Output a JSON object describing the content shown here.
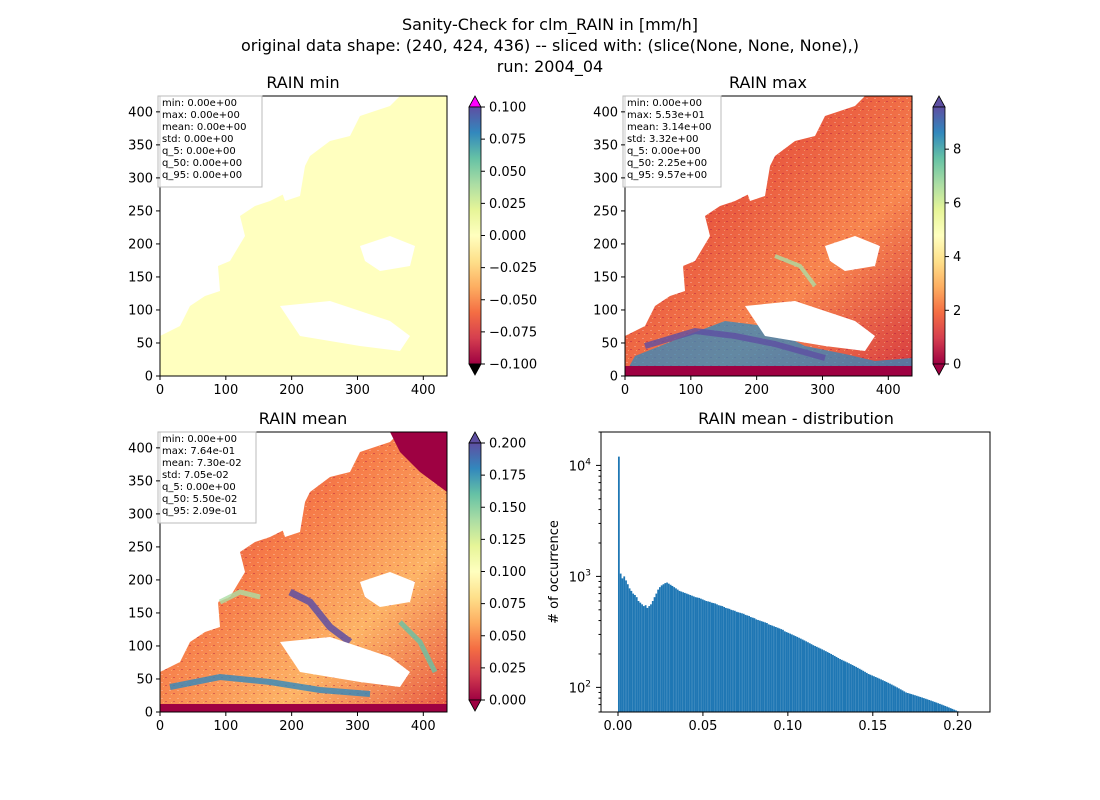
{
  "figure": {
    "title_lines": [
      "Sanity-Check for clm_RAIN in [mm/h]",
      "original data shape: (240, 424, 436) -- sliced with: (slice(None, None, None),)",
      "run: 2004_04"
    ]
  },
  "chart_data": [
    {
      "type": "heatmap",
      "title": "RAIN min",
      "x_ticks": [
        "0",
        "100",
        "200",
        "300",
        "400"
      ],
      "y_ticks": [
        "0",
        "50",
        "100",
        "150",
        "200",
        "250",
        "300",
        "350",
        "400"
      ],
      "xlim": [
        0,
        436
      ],
      "ylim": [
        0,
        424
      ],
      "colorbar": {
        "ticks": [
          "0.100",
          "0.075",
          "0.050",
          "0.025",
          "0.000",
          "−0.025",
          "−0.050",
          "−0.075",
          "−0.100"
        ],
        "vmin": -0.1,
        "vmax": 0.1,
        "extend": "both",
        "over_color": "#ff00ff",
        "under_color": "#000000"
      },
      "stats": [
        "min: 0.00e+00",
        "max: 0.00e+00",
        "mean: 0.00e+00",
        "std: 0.00e+00",
        "q_5: 0.00e+00",
        "q_50: 0.00e+00",
        "q_95: 0.00e+00"
      ]
    },
    {
      "type": "heatmap",
      "title": "RAIN max",
      "x_ticks": [
        "0",
        "100",
        "200",
        "300",
        "400"
      ],
      "y_ticks": [
        "0",
        "50",
        "100",
        "150",
        "200",
        "250",
        "300",
        "350",
        "400"
      ],
      "xlim": [
        0,
        436
      ],
      "ylim": [
        0,
        424
      ],
      "colorbar": {
        "ticks": [
          "8",
          "6",
          "4",
          "2",
          "0"
        ],
        "vmin": 0,
        "vmax": 9.57,
        "extend": "both"
      },
      "stats": [
        "min: 0.00e+00",
        "max: 5.53e+01",
        "mean: 3.14e+00",
        "std: 3.32e+00",
        "q_5: 0.00e+00",
        "q_50: 2.25e+00",
        "q_95: 9.57e+00"
      ]
    },
    {
      "type": "heatmap",
      "title": "RAIN mean",
      "x_ticks": [
        "0",
        "100",
        "200",
        "300",
        "400"
      ],
      "y_ticks": [
        "0",
        "50",
        "100",
        "150",
        "200",
        "250",
        "300",
        "350",
        "400"
      ],
      "xlim": [
        0,
        436
      ],
      "ylim": [
        0,
        424
      ],
      "colorbar": {
        "ticks": [
          "0.200",
          "0.175",
          "0.150",
          "0.125",
          "0.100",
          "0.075",
          "0.050",
          "0.025",
          "0.000"
        ],
        "vmin": 0,
        "vmax": 0.209,
        "extend": "both"
      },
      "stats": [
        "min: 0.00e+00",
        "max: 7.64e-01",
        "mean: 7.30e-02",
        "std: 7.05e-02",
        "q_5: 0.00e+00",
        "q_50: 5.50e-02",
        "q_95: 2.09e-01"
      ]
    },
    {
      "type": "bar",
      "title": "RAIN mean - distribution",
      "ylabel": "# of occurrence",
      "y_scale": "log",
      "ylim": [
        60,
        20000
      ],
      "xlim": [
        -0.01,
        0.219
      ],
      "x_ticks": [
        "0.00",
        "0.05",
        "0.10",
        "0.15",
        "0.20"
      ],
      "y_ticks": [
        "10^2",
        "10^3",
        "10^4"
      ],
      "color": "#1f77b4",
      "bins": {
        "start": 0.0,
        "width": 0.00105,
        "counts": [
          12000,
          1060,
          960,
          1000,
          920,
          850,
          780,
          740,
          700,
          680,
          650,
          600,
          580,
          560,
          540,
          550,
          520,
          540,
          560,
          600,
          650,
          700,
          760,
          800,
          830,
          850,
          870,
          880,
          860,
          840,
          820,
          800,
          780,
          760,
          740,
          730,
          720,
          710,
          700,
          690,
          680,
          670,
          660,
          650,
          645,
          640,
          630,
          620,
          610,
          600,
          595,
          590,
          580,
          575,
          570,
          560,
          550,
          545,
          540,
          530,
          520,
          515,
          510,
          500,
          495,
          490,
          480,
          475,
          470,
          465,
          460,
          450,
          445,
          440,
          430,
          425,
          420,
          410,
          405,
          400,
          395,
          390,
          385,
          380,
          370,
          365,
          360,
          355,
          350,
          345,
          340,
          335,
          330,
          320,
          315,
          310,
          305,
          300,
          295,
          290,
          285,
          280,
          275,
          270,
          265,
          260,
          255,
          250,
          245,
          240,
          236,
          232,
          228,
          224,
          220,
          216,
          212,
          208,
          204,
          200,
          196,
          192,
          188,
          184,
          180,
          177,
          174,
          171,
          168,
          165,
          162,
          159,
          156,
          153,
          150,
          147,
          144,
          141,
          138,
          135,
          132,
          130,
          128,
          126,
          124,
          122,
          120,
          118,
          116,
          114,
          112,
          110,
          108,
          106,
          104,
          102,
          100,
          98,
          96,
          94,
          92,
          90,
          89,
          88,
          87,
          86,
          85,
          84,
          83,
          82,
          81,
          80,
          79,
          78,
          77,
          76,
          75,
          74,
          73,
          72,
          71,
          70,
          69,
          68,
          67,
          66,
          65,
          64,
          63,
          62,
          61,
          60,
          60,
          60,
          60,
          60,
          60,
          60
        ]
      }
    }
  ]
}
